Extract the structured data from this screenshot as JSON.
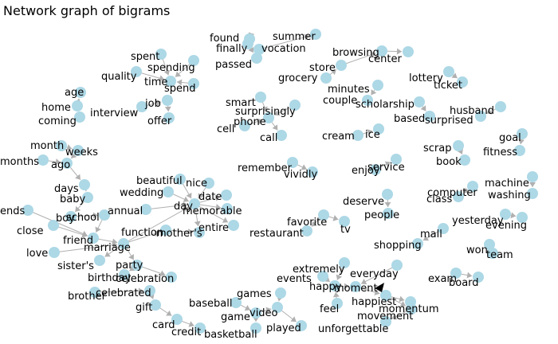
{
  "title": "Network graph of bigrams",
  "colors": {
    "node": "#add8e6",
    "edge": "#b0b0b0",
    "strong_edge": "#000000"
  },
  "nodes": [
    "found",
    "finally",
    "passed",
    "vocation",
    "summer",
    "spent",
    "spending",
    "quality",
    "time",
    "spend",
    "age",
    "home",
    "coming",
    "job",
    "offer",
    "interview",
    "smart",
    "surprisingly",
    "phone",
    "cell",
    "call",
    "grocery",
    "store",
    "browsing",
    "center",
    "minutes",
    "couple",
    "lottery",
    "ticket",
    "scholarship",
    "based",
    "husband",
    "surprised",
    "month",
    "weeks",
    "months",
    "ago",
    "days",
    "baby",
    "ends",
    "boy",
    "school",
    "close",
    "friend",
    "marriage",
    "love",
    "sister's",
    "party",
    "function",
    "mother's",
    "birthday",
    "celebration",
    "brother",
    "celebrated",
    "gift",
    "card",
    "credit",
    "beautiful",
    "nice",
    "wedding",
    "date",
    "day",
    "memorable",
    "annual",
    "entire",
    "cream",
    "ice",
    "remember",
    "vividly",
    "enjoy",
    "service",
    "scrap",
    "book",
    "goal",
    "fitness",
    "computer",
    "class",
    "machine",
    "washing",
    "deserve",
    "people",
    "favorite",
    "restaurant",
    "tv",
    "yesterday",
    "evening",
    "mall",
    "shopping",
    "won",
    "team",
    "exam",
    "board",
    "extremely",
    "everyday",
    "events",
    "happy",
    "moment",
    "happiest",
    "momentum",
    "feel",
    "movement",
    "unforgettable",
    "games",
    "baseball",
    "game",
    "video",
    "played",
    "basketball"
  ],
  "edges": [
    [
      "found",
      "finally"
    ],
    [
      "finally",
      "passed"
    ],
    [
      "vocation",
      "summer"
    ],
    [
      "spent",
      "time"
    ],
    [
      "spending",
      "time"
    ],
    [
      "quality",
      "time"
    ],
    [
      "spend",
      "time"
    ],
    [
      "home",
      "age"
    ],
    [
      "coming",
      "home"
    ],
    [
      "job",
      "offer"
    ],
    [
      "interview",
      "job"
    ],
    [
      "smart",
      "phone"
    ],
    [
      "surprisingly",
      "phone"
    ],
    [
      "cell",
      "phone"
    ],
    [
      "phone",
      "call"
    ],
    [
      "grocery",
      "store"
    ],
    [
      "store",
      "browsing"
    ],
    [
      "browsing",
      "center"
    ],
    [
      "minutes",
      "couple"
    ],
    [
      "lottery",
      "ticket"
    ],
    [
      "scholarship",
      "based"
    ],
    [
      "husband",
      "surprised"
    ],
    [
      "month",
      "weeks"
    ],
    [
      "weeks",
      "ago"
    ],
    [
      "months",
      "ago"
    ],
    [
      "ago",
      "days"
    ],
    [
      "days",
      "baby"
    ],
    [
      "baby",
      "boy"
    ],
    [
      "boy",
      "school"
    ],
    [
      "ends",
      "friend"
    ],
    [
      "close",
      "friend"
    ],
    [
      "friend",
      "marriage"
    ],
    [
      "school",
      "friend"
    ],
    [
      "love",
      "marriage"
    ],
    [
      "marriage",
      "sister's"
    ],
    [
      "marriage",
      "party"
    ],
    [
      "marriage",
      "function"
    ],
    [
      "party",
      "birthday"
    ],
    [
      "party",
      "celebration"
    ],
    [
      "function",
      "mother's"
    ],
    [
      "brother",
      "celebrated"
    ],
    [
      "celebrated",
      "gift"
    ],
    [
      "gift",
      "card"
    ],
    [
      "card",
      "credit"
    ],
    [
      "beautiful",
      "day"
    ],
    [
      "nice",
      "day"
    ],
    [
      "wedding",
      "day"
    ],
    [
      "day",
      "date"
    ],
    [
      "day",
      "memorable"
    ],
    [
      "annual",
      "day"
    ],
    [
      "day",
      "entire"
    ],
    [
      "day",
      "mother's"
    ],
    [
      "marriage",
      "day"
    ],
    [
      "cream",
      "ice"
    ],
    [
      "remember",
      "vividly"
    ],
    [
      "enjoy",
      "service"
    ],
    [
      "scrap",
      "book"
    ],
    [
      "goal",
      "fitness"
    ],
    [
      "computer",
      "class"
    ],
    [
      "machine",
      "washing"
    ],
    [
      "deserve",
      "people"
    ],
    [
      "favorite",
      "restaurant"
    ],
    [
      "favorite",
      "tv"
    ],
    [
      "yesterday",
      "evening"
    ],
    [
      "mall",
      "shopping"
    ],
    [
      "won",
      "team"
    ],
    [
      "exam",
      "board"
    ],
    [
      "extremely",
      "happy"
    ],
    [
      "everyday",
      "moment"
    ],
    [
      "events",
      "happy"
    ],
    [
      "happy",
      "moment"
    ],
    [
      "moment",
      "happiest"
    ],
    [
      "happiest",
      "momentum"
    ],
    [
      "happiest",
      "movement"
    ],
    [
      "feel",
      "happy"
    ],
    [
      "movement",
      "unforgettable"
    ],
    [
      "games",
      "video"
    ],
    [
      "baseball",
      "game"
    ],
    [
      "game",
      "video"
    ],
    [
      "video",
      "played"
    ],
    [
      "game",
      "basketball"
    ]
  ]
}
